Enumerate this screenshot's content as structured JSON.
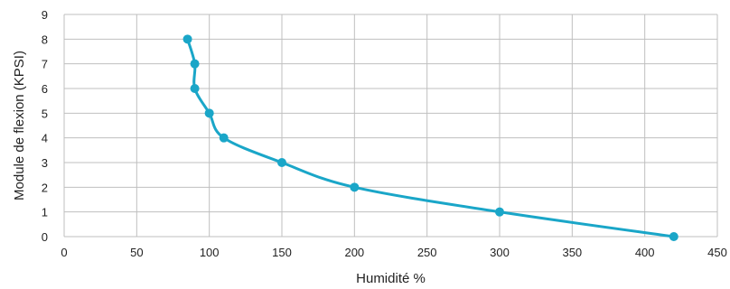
{
  "chart_data": {
    "type": "line",
    "xlabel": "Humidité %",
    "ylabel": "Module de flexion (KPSI)",
    "xlim": [
      0,
      450
    ],
    "ylim": [
      0,
      9
    ],
    "x_ticks": [
      0,
      50,
      100,
      150,
      200,
      250,
      300,
      350,
      400,
      450
    ],
    "y_ticks": [
      0,
      1,
      2,
      3,
      4,
      5,
      6,
      7,
      8,
      9
    ],
    "grid": true,
    "smooth": true,
    "series": [
      {
        "color": "#1aa6c8",
        "points": [
          {
            "x": 85,
            "y": 8
          },
          {
            "x": 90,
            "y": 7
          },
          {
            "x": 90,
            "y": 6
          },
          {
            "x": 100,
            "y": 5
          },
          {
            "x": 110,
            "y": 4
          },
          {
            "x": 150,
            "y": 3
          },
          {
            "x": 200,
            "y": 2
          },
          {
            "x": 300,
            "y": 1
          },
          {
            "x": 420,
            "y": 0
          }
        ]
      }
    ]
  }
}
